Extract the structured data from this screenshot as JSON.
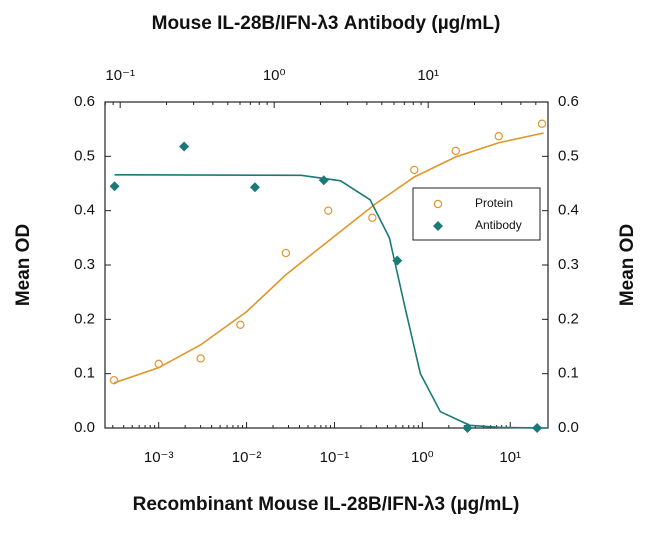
{
  "chart_data": {
    "type": "scatter",
    "x_label": "Recombinant Mouse IL-28B/IFN-λ3 (µg/mL)",
    "x2_label": "Mouse IL-28B/IFN-λ3 Antibody (µg/mL)",
    "y_label": "Mean OD",
    "y2_label": "Mean OD",
    "xscale": "log",
    "xlim": [
      0.000245,
      26.9
    ],
    "xticks": [
      {
        "value": 0.001,
        "label": "10⁻³"
      },
      {
        "value": 0.01,
        "label": "10⁻²"
      },
      {
        "value": 0.1,
        "label": "10⁻¹"
      },
      {
        "value": 1,
        "label": "10⁰"
      },
      {
        "value": 10,
        "label": "10¹"
      }
    ],
    "x2lim": [
      0.0797,
      60
    ],
    "x2ticks": [
      {
        "value": 0.1,
        "label": "10⁻¹"
      },
      {
        "value": 1,
        "label": "10⁰"
      },
      {
        "value": 10,
        "label": "10¹"
      }
    ],
    "ylim": [
      0,
      0.6
    ],
    "yticks": [
      {
        "value": 0,
        "label": "0.0"
      },
      0.1,
      0.2,
      0.3,
      0.4,
      0.5,
      0.6
    ],
    "y2lim": [
      0,
      0.6
    ],
    "y2ticks": [
      {
        "value": 0,
        "label": "0.0"
      },
      0.1,
      0.2,
      0.3,
      0.4,
      0.5,
      0.6
    ],
    "legend": "center right",
    "series": [
      {
        "name": "Protein",
        "color": "#e0962a",
        "marker": "circle-open",
        "x": [
          0.00031,
          0.001,
          0.003,
          0.0085,
          0.028,
          0.085,
          0.27,
          0.81,
          2.4,
          7.4,
          23
        ],
        "values": [
          0.088,
          0.118,
          0.128,
          0.19,
          0.322,
          0.4,
          0.387,
          0.475,
          0.51,
          0.537,
          0.56
        ],
        "fit": {
          "x": [
            0.00031,
            0.001,
            0.003,
            0.01,
            0.028,
            0.1,
            0.29,
            0.81,
            2.4,
            7.4,
            24
          ],
          "values": [
            0.083,
            0.111,
            0.153,
            0.214,
            0.282,
            0.353,
            0.412,
            0.462,
            0.499,
            0.525,
            0.543
          ]
        }
      },
      {
        "name": "Antibody",
        "color": "#1a7a78",
        "marker": "diamond",
        "axis": "x2",
        "x": [
          0.092,
          0.26,
          0.75,
          2.1,
          6.3,
          18,
          51
        ],
        "values": [
          0.445,
          0.518,
          0.443,
          0.456,
          0.308,
          0,
          0
        ],
        "fit": {
          "x": [
            0.092,
            1.5,
            2.7,
            4.2,
            5.6,
            7.1,
            8.9,
            12,
            18.6,
            29.5,
            60
          ],
          "values": [
            0.466,
            0.465,
            0.455,
            0.42,
            0.35,
            0.22,
            0.1,
            0.03,
            0.005,
            0.001,
            0
          ]
        }
      }
    ]
  }
}
